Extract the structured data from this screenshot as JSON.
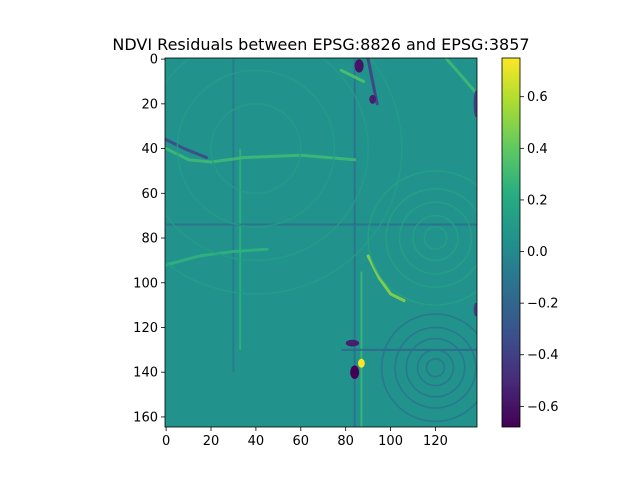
{
  "chart_data": {
    "type": "heatmap",
    "title": "NDVI Residuals between EPSG:8826 and EPSG:3857",
    "xlabel": "",
    "ylabel": "",
    "x_ticks": [
      "0",
      "20",
      "40",
      "60",
      "80",
      "100",
      "120"
    ],
    "x_tick_values": [
      0,
      20,
      40,
      60,
      80,
      100,
      120
    ],
    "y_ticks": [
      "0",
      "20",
      "40",
      "60",
      "80",
      "100",
      "120",
      "140",
      "160"
    ],
    "y_tick_values": [
      0,
      20,
      40,
      60,
      80,
      100,
      120,
      140,
      160
    ],
    "xlim": [
      -0.5,
      138.5
    ],
    "ylim": [
      164.5,
      -0.5
    ],
    "colormap": "viridis",
    "colorbar": {
      "range": [
        -0.68,
        0.75
      ],
      "ticks": [
        "0.6",
        "0.4",
        "0.2",
        "0.0",
        "−0.2",
        "−0.4",
        "−0.6"
      ],
      "tick_values": [
        0.6,
        0.4,
        0.2,
        0.0,
        -0.2,
        -0.4,
        -0.6
      ]
    },
    "background_value": 0.05,
    "features": [
      {
        "kind": "vertical_line",
        "x": 30,
        "y0": 0,
        "y1": 140,
        "value": -0.1
      },
      {
        "kind": "vertical_line",
        "x": 33,
        "y0": 40,
        "y1": 130,
        "value": 0.25
      },
      {
        "kind": "vertical_line",
        "x": 84,
        "y0": 0,
        "y1": 165,
        "value": -0.15
      },
      {
        "kind": "vertical_line",
        "x": 87,
        "y0": 95,
        "y1": 165,
        "value": 0.3
      },
      {
        "kind": "horizontal_line",
        "y": 74,
        "x0": 0,
        "x1": 139,
        "value": -0.15
      },
      {
        "kind": "horizontal_line",
        "y": 130,
        "x0": 78,
        "x1": 139,
        "value": -0.2
      },
      {
        "kind": "polyline",
        "points": [
          [
            0,
            40
          ],
          [
            10,
            45
          ],
          [
            20,
            46
          ],
          [
            35,
            44
          ],
          [
            60,
            43
          ],
          [
            84,
            45
          ]
        ],
        "value": 0.3
      },
      {
        "kind": "polyline",
        "points": [
          [
            0,
            36
          ],
          [
            8,
            40
          ],
          [
            18,
            44
          ]
        ],
        "value": -0.35
      },
      {
        "kind": "polyline",
        "points": [
          [
            0,
            92
          ],
          [
            15,
            88
          ],
          [
            30,
            86
          ],
          [
            45,
            85
          ]
        ],
        "value": 0.25
      },
      {
        "kind": "polyline",
        "points": [
          [
            90,
            88
          ],
          [
            95,
            98
          ],
          [
            100,
            105
          ],
          [
            106,
            108
          ]
        ],
        "value": 0.5
      },
      {
        "kind": "polyline",
        "points": [
          [
            78,
            5
          ],
          [
            84,
            8
          ],
          [
            88,
            10
          ]
        ],
        "value": 0.35
      },
      {
        "kind": "polyline",
        "points": [
          [
            90,
            0
          ],
          [
            92,
            10
          ],
          [
            94,
            20
          ]
        ],
        "value": -0.4
      },
      {
        "kind": "polyline",
        "points": [
          [
            125,
            0
          ],
          [
            132,
            8
          ],
          [
            138,
            15
          ]
        ],
        "value": 0.3
      },
      {
        "kind": "rings",
        "cx": 40,
        "cy": 40,
        "radii": [
          20,
          35,
          50,
          65
        ],
        "value": 0.12
      },
      {
        "kind": "rings",
        "cx": 120,
        "cy": 80,
        "radii": [
          5,
          10,
          16,
          22,
          30
        ],
        "value": 0.15
      },
      {
        "kind": "rings",
        "cx": 120,
        "cy": 138,
        "radii": [
          4,
          8,
          13,
          18,
          24
        ],
        "value": -0.15
      },
      {
        "kind": "blob",
        "x": 84,
        "y": 140,
        "rx": 2,
        "ry": 3,
        "value": -0.68
      },
      {
        "kind": "blob",
        "x": 87,
        "y": 136,
        "rx": 1.5,
        "ry": 2,
        "value": 0.75
      },
      {
        "kind": "blob",
        "x": 83,
        "y": 127,
        "rx": 3,
        "ry": 1.5,
        "value": -0.55
      },
      {
        "kind": "blob",
        "x": 86,
        "y": 3,
        "rx": 2,
        "ry": 3,
        "value": -0.6
      },
      {
        "kind": "blob",
        "x": 92,
        "y": 18,
        "rx": 1.5,
        "ry": 2,
        "value": -0.55
      },
      {
        "kind": "blob",
        "x": 138,
        "y": 20,
        "rx": 1,
        "ry": 6,
        "value": -0.4
      },
      {
        "kind": "blob",
        "x": 138,
        "y": 112,
        "rx": 1,
        "ry": 3,
        "value": -0.4
      }
    ]
  }
}
